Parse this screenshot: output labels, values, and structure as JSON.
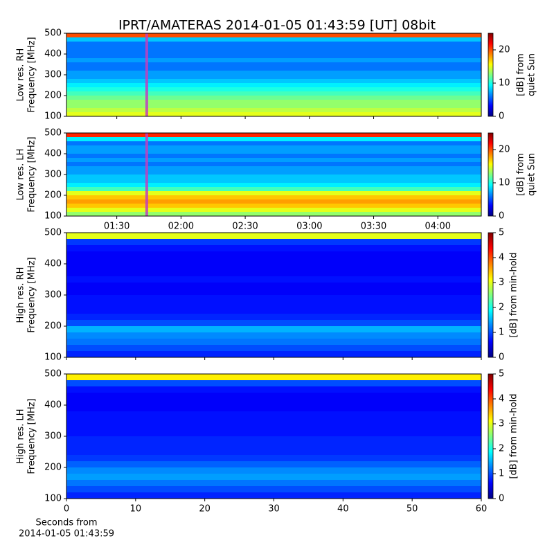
{
  "title": "IPRT/AMATERAS 2014-01-05 01:43:59 [UT]   08bit",
  "chart_data": [
    {
      "type": "spectrogram",
      "ylabel": [
        "Low res. RH",
        "Frequency [MHz]"
      ],
      "xlim": [
        66.5,
        260.3
      ],
      "xticks": [
        {
          "value": 90,
          "label": "01:30"
        },
        {
          "value": 120,
          "label": "02:00"
        },
        {
          "value": 150,
          "label": "02:30"
        },
        {
          "value": 180,
          "label": "03:00"
        },
        {
          "value": 210,
          "label": "03:30"
        },
        {
          "value": 240,
          "label": "04:00"
        }
      ],
      "show_xtick_labels": false,
      "marker_x": 104,
      "marker_color": "#c040c0",
      "ylim": [
        100,
        500
      ],
      "yticks": [
        100,
        200,
        300,
        400,
        500
      ],
      "freq_edges": [
        100,
        120,
        140,
        160,
        180,
        200,
        220,
        240,
        260,
        280,
        300,
        320,
        340,
        360,
        380,
        400,
        420,
        440,
        460,
        480,
        500
      ],
      "values": [
        15,
        14,
        13,
        13,
        12,
        11,
        10,
        9,
        8,
        7,
        7,
        6,
        6,
        7,
        6,
        6,
        6,
        6,
        8,
        20
      ],
      "clim": [
        0,
        25
      ],
      "cticks": [
        0,
        10,
        20
      ],
      "colorbar_label": [
        "[dB] from",
        "quiet Sun"
      ]
    },
    {
      "type": "spectrogram",
      "ylabel": [
        "Low res. LH",
        "Frequency [MHz]"
      ],
      "xlim": [
        66.5,
        260.3
      ],
      "xticks": [
        {
          "value": 90,
          "label": "01:30"
        },
        {
          "value": 120,
          "label": "02:00"
        },
        {
          "value": 150,
          "label": "02:30"
        },
        {
          "value": 180,
          "label": "03:00"
        },
        {
          "value": 210,
          "label": "03:30"
        },
        {
          "value": 240,
          "label": "04:00"
        }
      ],
      "show_xtick_labels": true,
      "marker_x": 104,
      "marker_color": "#c040c0",
      "ylim": [
        100,
        500
      ],
      "yticks": [
        100,
        200,
        300,
        400,
        500
      ],
      "freq_edges": [
        100,
        120,
        140,
        160,
        180,
        200,
        220,
        240,
        260,
        280,
        300,
        320,
        340,
        360,
        380,
        400,
        420,
        440,
        460,
        480,
        500
      ],
      "values": [
        13,
        15,
        17,
        18,
        17,
        15,
        11,
        9,
        8,
        8,
        7,
        7,
        6,
        7,
        6,
        7,
        7,
        6,
        9,
        21
      ],
      "clim": [
        0,
        25
      ],
      "cticks": [
        0,
        10,
        20
      ],
      "colorbar_label": [
        "[dB] from",
        "quiet Sun"
      ]
    },
    {
      "type": "spectrogram",
      "ylabel": [
        "High res. RH",
        "Frequency [MHz]"
      ],
      "xlim": [
        0,
        60
      ],
      "xticks": [
        0,
        10,
        20,
        30,
        40,
        50,
        60
      ],
      "show_xtick_labels": false,
      "ylim": [
        100,
        500
      ],
      "yticks": [
        100,
        200,
        300,
        400,
        500
      ],
      "freq_edges": [
        100,
        120,
        140,
        160,
        180,
        200,
        220,
        240,
        260,
        280,
        300,
        320,
        340,
        360,
        380,
        400,
        420,
        440,
        460,
        480,
        500
      ],
      "values": [
        0.8,
        1.0,
        1.2,
        1.3,
        1.5,
        1.0,
        0.8,
        0.7,
        0.7,
        0.7,
        0.6,
        0.6,
        0.7,
        0.6,
        0.6,
        0.6,
        0.6,
        0.7,
        0.9,
        3.0
      ],
      "clim": [
        0,
        5
      ],
      "cticks": [
        0,
        1,
        2,
        3,
        4,
        5
      ],
      "colorbar_label": [
        "[dB] from min-hold"
      ]
    },
    {
      "type": "spectrogram",
      "ylabel": [
        "High res. LH",
        "Frequency [MHz]"
      ],
      "xlim": [
        0,
        60
      ],
      "xticks": [
        0,
        10,
        20,
        30,
        40,
        50,
        60
      ],
      "show_xtick_labels": true,
      "xlabel": [
        "Seconds from",
        "2014-01-05 01:43:59"
      ],
      "ylim": [
        100,
        500
      ],
      "yticks": [
        100,
        200,
        300,
        400,
        500
      ],
      "freq_edges": [
        100,
        120,
        140,
        160,
        180,
        200,
        220,
        240,
        260,
        280,
        300,
        320,
        340,
        360,
        380,
        400,
        420,
        440,
        460,
        480,
        500
      ],
      "values": [
        0.8,
        1.0,
        1.2,
        1.4,
        1.3,
        1.1,
        0.9,
        0.8,
        0.8,
        0.8,
        0.7,
        0.7,
        0.7,
        0.7,
        0.6,
        0.6,
        0.6,
        0.7,
        1.0,
        3.2
      ],
      "clim": [
        0,
        5
      ],
      "cticks": [
        0,
        1,
        2,
        3,
        4,
        5
      ],
      "colorbar_label": [
        "[dB] from min-hold"
      ]
    }
  ]
}
